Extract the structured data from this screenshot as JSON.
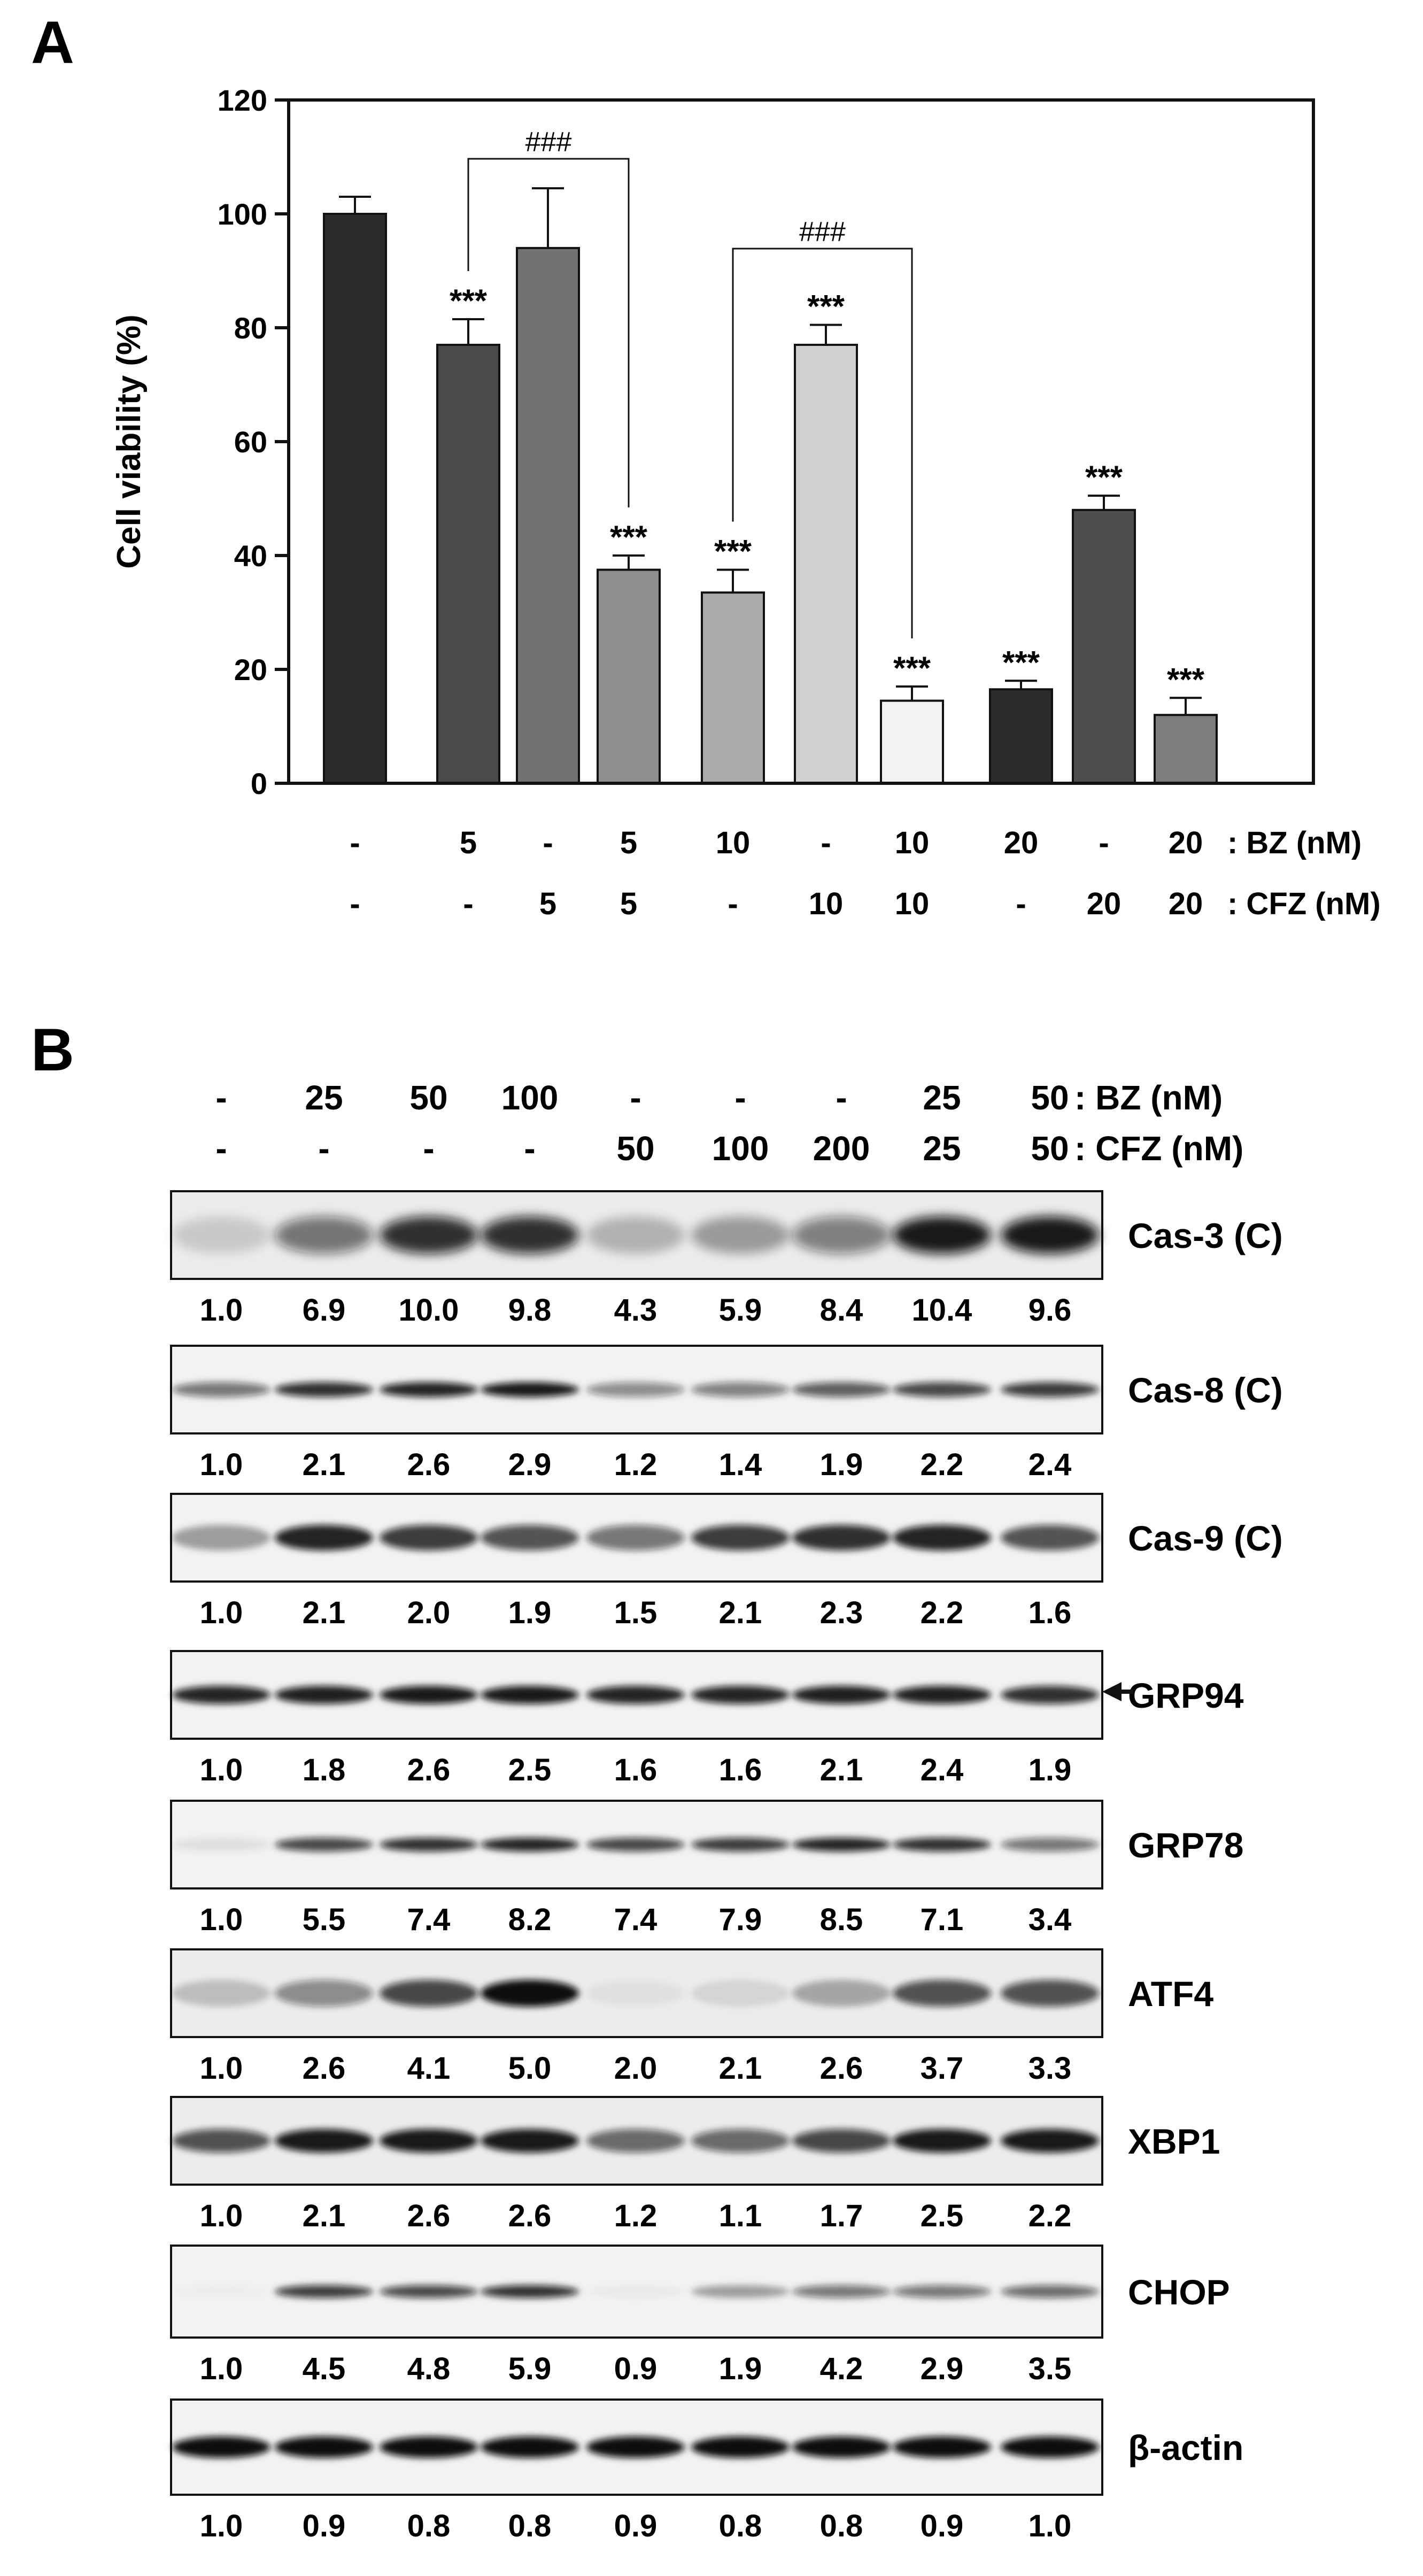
{
  "panel_a": {
    "label": "A",
    "chart_data": {
      "type": "bar",
      "ylabel": "Cell viability (%)",
      "ylim": [
        0,
        120
      ],
      "yticks": [
        0,
        20,
        40,
        60,
        80,
        100,
        120
      ],
      "bars": [
        {
          "value": 100,
          "error": 3,
          "color": "#2c2c2c",
          "sig": "",
          "bz": "-",
          "cfz": "-"
        },
        {
          "value": 77,
          "error": 4.5,
          "color": "#4a4a4a",
          "sig": "***",
          "bz": "5",
          "cfz": "-"
        },
        {
          "value": 94,
          "error": 10.5,
          "color": "#727272",
          "sig": "",
          "bz": "-",
          "cfz": "5"
        },
        {
          "value": 37.5,
          "error": 2.5,
          "color": "#8f8f8f",
          "sig": "***",
          "bz": "5",
          "cfz": "5"
        },
        {
          "value": 33.5,
          "error": 4,
          "color": "#ababab",
          "sig": "***",
          "bz": "10",
          "cfz": "-"
        },
        {
          "value": 77,
          "error": 3.5,
          "color": "#d0d0d0",
          "sig": "***",
          "bz": "-",
          "cfz": "10"
        },
        {
          "value": 14.5,
          "error": 2.5,
          "color": "#f2f2f2",
          "sig": "***",
          "bz": "10",
          "cfz": "10"
        },
        {
          "value": 16.5,
          "error": 1.5,
          "color": "#2c2c2c",
          "sig": "***",
          "bz": "20",
          "cfz": "-"
        },
        {
          "value": 48,
          "error": 2.5,
          "color": "#4e4e4e",
          "sig": "***",
          "bz": "-",
          "cfz": "20"
        },
        {
          "value": 12,
          "error": 3,
          "color": "#7d7d7d",
          "sig": "***",
          "bz": "20",
          "cfz": "20"
        }
      ],
      "brackets": [
        {
          "label": "###",
          "from_bar": 1,
          "to_bar": 3
        },
        {
          "label": "###",
          "from_bar": 4,
          "to_bar": 6
        }
      ],
      "row_labels": [
        ": BZ (nM)",
        ": CFZ (nM)"
      ]
    }
  },
  "panel_b": {
    "label": "B",
    "header": {
      "bz": [
        "-",
        "25",
        "50",
        "100",
        "-",
        "-",
        "-",
        "25",
        "50"
      ],
      "cfz": [
        "-",
        "-",
        "-",
        "-",
        "50",
        "100",
        "200",
        "25",
        "50"
      ],
      "row_labels": [
        ": BZ (nM)",
        ": CFZ (nM)"
      ]
    },
    "blots": [
      {
        "name": "Cas-3 (C)",
        "arrow": false,
        "values": [
          "1.0",
          "6.9",
          "10.0",
          "9.8",
          "4.3",
          "5.9",
          "8.4",
          "10.4",
          "9.6"
        ]
      },
      {
        "name": "Cas-8 (C)",
        "arrow": false,
        "values": [
          "1.0",
          "2.1",
          "2.6",
          "2.9",
          "1.2",
          "1.4",
          "1.9",
          "2.2",
          "2.4"
        ]
      },
      {
        "name": "Cas-9 (C)",
        "arrow": false,
        "values": [
          "1.0",
          "2.1",
          "2.0",
          "1.9",
          "1.5",
          "2.1",
          "2.3",
          "2.2",
          "1.6"
        ]
      },
      {
        "name": "GRP94",
        "arrow": true,
        "values": [
          "1.0",
          "1.8",
          "2.6",
          "2.5",
          "1.6",
          "1.6",
          "2.1",
          "2.4",
          "1.9"
        ]
      },
      {
        "name": "GRP78",
        "arrow": false,
        "values": [
          "1.0",
          "5.5",
          "7.4",
          "8.2",
          "7.4",
          "7.9",
          "8.5",
          "7.1",
          "3.4"
        ]
      },
      {
        "name": "ATF4",
        "arrow": false,
        "values": [
          "1.0",
          "2.6",
          "4.1",
          "5.0",
          "2.0",
          "2.1",
          "2.6",
          "3.7",
          "3.3"
        ]
      },
      {
        "name": "XBP1",
        "arrow": false,
        "values": [
          "1.0",
          "2.1",
          "2.6",
          "2.6",
          "1.2",
          "1.1",
          "1.7",
          "2.5",
          "2.2"
        ]
      },
      {
        "name": "CHOP",
        "arrow": false,
        "values": [
          "1.0",
          "4.5",
          "4.8",
          "5.9",
          "0.9",
          "1.9",
          "4.2",
          "2.9",
          "3.5"
        ]
      },
      {
        "name": "β-actin",
        "arrow": false,
        "values": [
          "1.0",
          "0.9",
          "0.8",
          "0.8",
          "0.9",
          "0.8",
          "0.8",
          "0.9",
          "1.0"
        ]
      }
    ]
  }
}
